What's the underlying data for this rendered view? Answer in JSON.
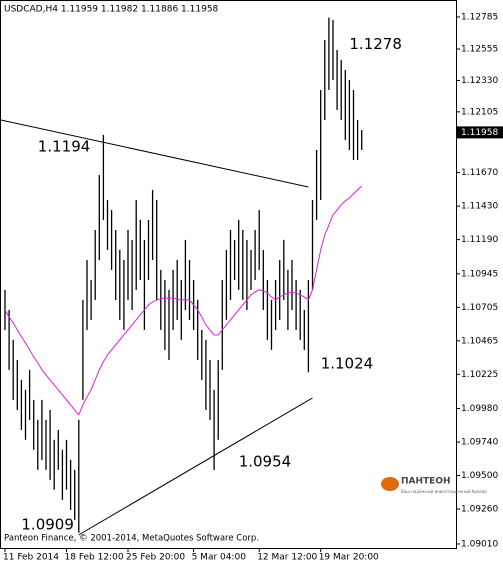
{
  "chart_data": {
    "type": "ohlc",
    "title": "USDCAD,H4  1.11959 1.11982 1.11886 1.11958",
    "footer": "Panteon Finance, © 2001-2014, MetaQuotes Software Corp.",
    "logo_text": "ПАНТЕОН",
    "logo_subtitle": "Ваш надёжный инвестиционный брокер",
    "categories": [
      "11 Feb 2014",
      null,
      null,
      null,
      null,
      null,
      null,
      null,
      null,
      null,
      null,
      null,
      null,
      null,
      null,
      "18 Feb 12:00",
      null,
      null,
      null,
      null,
      null,
      null,
      null,
      null,
      null,
      null,
      null,
      null,
      null,
      null,
      "25 Feb 20:00",
      null,
      null,
      null,
      null,
      null,
      null,
      null,
      null,
      null,
      null,
      null,
      null,
      null,
      null,
      null,
      "5 Mar 04:00",
      null,
      null,
      null,
      null,
      null,
      null,
      null,
      null,
      null,
      null,
      null,
      null,
      null,
      null,
      null,
      "12 Mar 12:00",
      null,
      null,
      null,
      null,
      null,
      null,
      null,
      null,
      null,
      null,
      null,
      null,
      null,
      null,
      "19 Mar 20:00",
      null,
      null,
      null,
      null,
      null,
      null,
      null,
      null,
      null,
      null
    ],
    "color": "#000000",
    "high": [
      1.1083,
      1.10686,
      1.10472,
      1.10328,
      1.10185,
      1.10114,
      1.10257,
      1.10042,
      1.09899,
      1.10042,
      1.09899,
      1.0997,
      1.09756,
      1.09827,
      1.09684,
      1.09756,
      1.09612,
      1.09541,
      1.09899,
      1.10758,
      1.11044,
      1.10901,
      1.11259,
      1.11653,
      1.1194,
      1.11474,
      1.11402,
      1.11259,
      1.11116,
      1.11044,
      1.11259,
      1.11188,
      1.11474,
      1.11331,
      1.11188,
      1.11331,
      1.11546,
      1.11474,
      1.10973,
      1.10901,
      1.1083,
      1.10973,
      1.11044,
      1.10901,
      1.11188,
      1.11044,
      1.10901,
      1.10758,
      1.10543,
      1.10472,
      1.10328,
      1.10114,
      1.10328,
      1.10901,
      1.11116,
      1.11259,
      1.11188,
      1.11331,
      1.11259,
      1.11188,
      1.11116,
      1.11259,
      1.11402,
      1.11116,
      1.10901,
      1.10758,
      1.10901,
      1.11044,
      1.11188,
      1.10973,
      1.11044,
      1.10901,
      1.1083,
      1.10686,
      1.10901,
      1.11474,
      1.11832,
      1.12262,
      1.1262,
      1.1278,
      1.12763,
      1.12548,
      1.12476,
      1.12405,
      1.12333,
      1.12262,
      1.12047,
      1.11975
    ],
    "low": [
      1.10543,
      1.10257,
      1.10042,
      1.0997,
      1.09827,
      1.09756,
      1.09899,
      1.09684,
      1.09541,
      1.09612,
      1.09541,
      1.09469,
      1.09398,
      1.09541,
      1.09326,
      1.09398,
      1.09254,
      1.09183,
      1.0909,
      1.10042,
      1.10543,
      1.10615,
      1.10758,
      1.11044,
      1.11331,
      1.11116,
      1.10973,
      1.10758,
      1.10615,
      1.10543,
      1.10758,
      1.10686,
      1.1083,
      1.10901,
      1.10543,
      1.10901,
      1.11044,
      1.10758,
      1.10543,
      1.104,
      1.10328,
      1.10543,
      1.10615,
      1.10472,
      1.10686,
      1.10615,
      1.10543,
      1.10328,
      1.10185,
      1.0997,
      1.09899,
      1.0954,
      1.09756,
      1.10257,
      1.10615,
      1.10758,
      1.10901,
      1.1083,
      1.10758,
      1.10686,
      1.1083,
      1.10901,
      1.10973,
      1.10686,
      1.10472,
      1.104,
      1.10543,
      1.10615,
      1.10758,
      1.10543,
      1.10686,
      1.10543,
      1.10472,
      1.104,
      1.1024,
      1.1083,
      1.11331,
      1.11474,
      1.12047,
      1.12262,
      1.12333,
      1.12118,
      1.12047,
      1.11904,
      1.11832,
      1.1176,
      1.1176,
      1.11832
    ],
    "ma": {
      "color": "#e01ee0",
      "values": [
        1.10686,
        1.10636,
        1.10594,
        1.10543,
        1.10493,
        1.1045,
        1.104,
        1.1035,
        1.10307,
        1.10257,
        1.10221,
        1.10185,
        1.10149,
        1.10114,
        1.10078,
        1.10042,
        1.10006,
        1.0997,
        1.09935,
        1.10006,
        1.10064,
        1.10114,
        1.10185,
        1.10257,
        1.10314,
        1.10364,
        1.104,
        1.10436,
        1.10472,
        1.10507,
        1.10543,
        1.10579,
        1.10615,
        1.10651,
        1.10686,
        1.10722,
        1.10744,
        1.10758,
        1.10765,
        1.10772,
        1.10772,
        1.10772,
        1.10765,
        1.10758,
        1.10758,
        1.10758,
        1.10722,
        1.10686,
        1.10636,
        1.10579,
        1.10543,
        1.10507,
        1.10507,
        1.10543,
        1.10579,
        1.10615,
        1.10651,
        1.10686,
        1.10722,
        1.10758,
        1.10794,
        1.10815,
        1.1083,
        1.10822,
        1.10808,
        1.10779,
        1.10758,
        1.10779,
        1.10794,
        1.10808,
        1.10815,
        1.10808,
        1.10794,
        1.10779,
        1.10758,
        1.1083,
        1.10973,
        1.11116,
        1.11223,
        1.11295,
        1.11367,
        1.11402,
        1.11438,
        1.11467,
        1.11488,
        1.11517,
        1.11546,
        1.11574
      ]
    },
    "trendlines": [
      {
        "x": [
          -1,
          74
        ],
        "y": [
          1.12047,
          1.11567
        ]
      },
      {
        "x": [
          18,
          75
        ],
        "y": [
          1.09075,
          1.10056
        ]
      }
    ],
    "annotations": [
      {
        "x": 84,
        "value": 1.1278
      },
      {
        "x": 8,
        "value": 1.1194
      },
      {
        "x": 77,
        "value": 1.1024
      },
      {
        "x": 57,
        "value": 1.0954
      },
      {
        "x": 4,
        "value": 1.0909
      }
    ],
    "last_price": 1.11958,
    "ylim": [
      1.08981,
      1.12892
    ],
    "yticks": [
      1.12785,
      1.12555,
      {
        "value": 1.1233,
        "label": "1.12330"
      },
      1.12105,
      {
        "value": 1.1167,
        "label": "1.11670"
      },
      {
        "value": 1.1143,
        "label": "1.11430"
      },
      {
        "value": 1.1119,
        "label": "1.11190"
      },
      1.10945,
      1.10705,
      1.10465,
      1.10225,
      {
        "value": 1.0998,
        "label": "1.09980"
      },
      {
        "value": 1.0974,
        "label": "1.09740"
      },
      {
        "value": 1.095,
        "label": "1.09500"
      },
      {
        "value": 1.0926,
        "label": "1.09260"
      },
      {
        "value": 1.0901,
        "label": "1.09010"
      }
    ]
  }
}
